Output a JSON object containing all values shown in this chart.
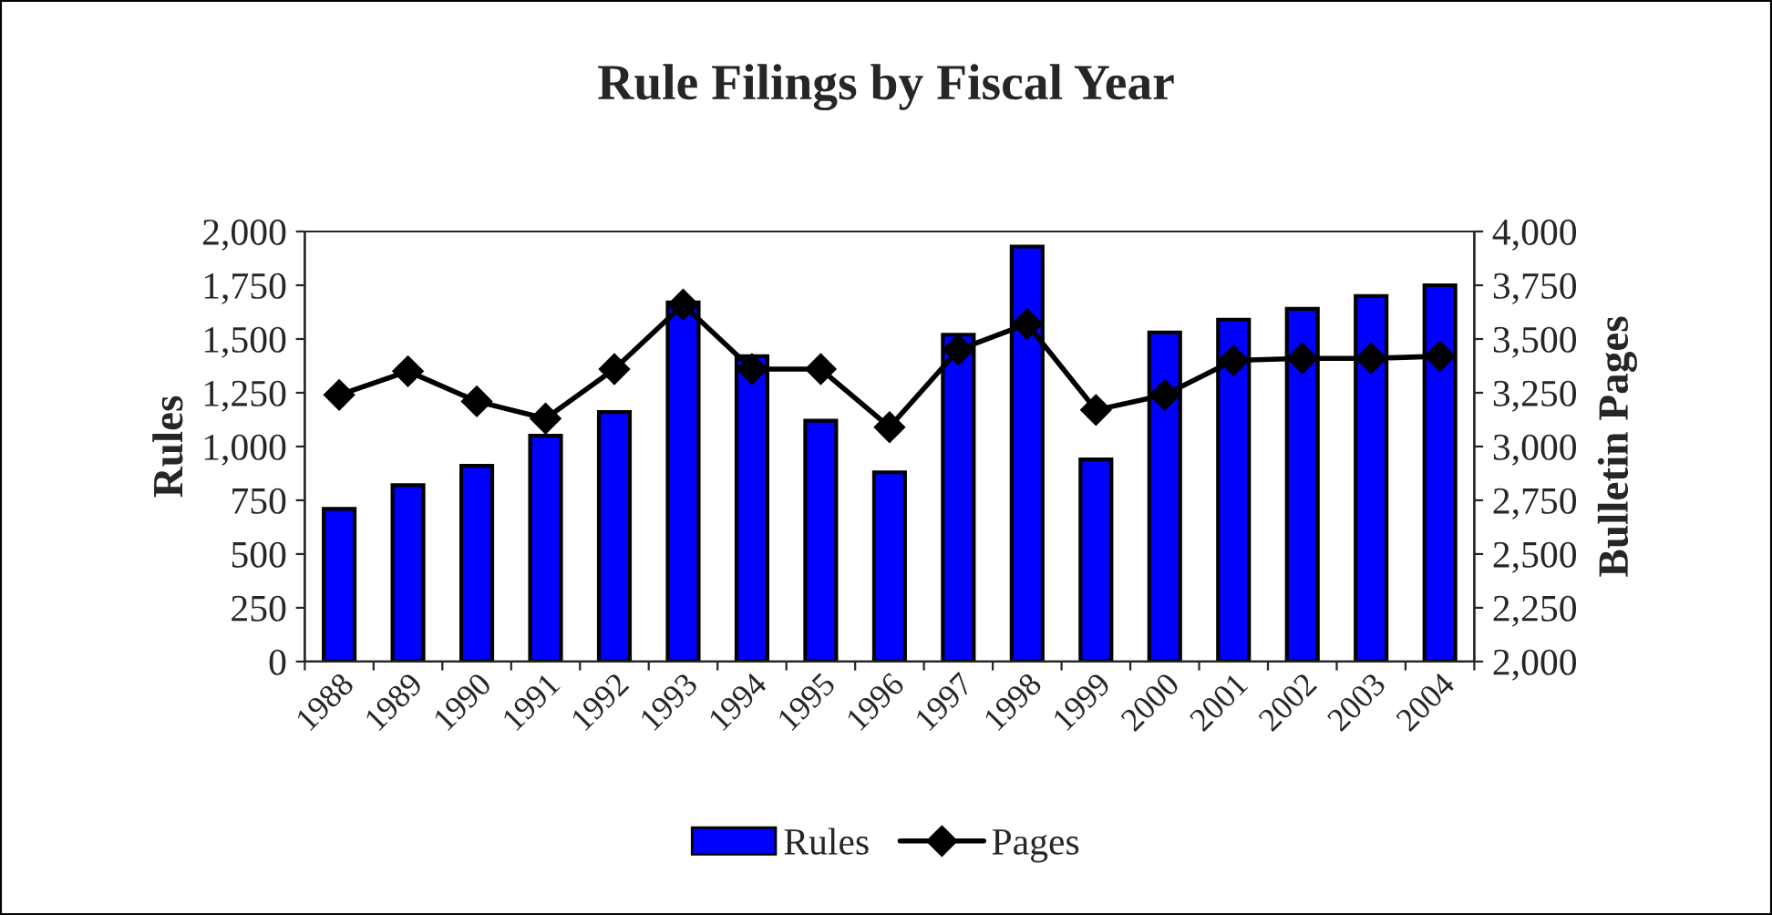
{
  "chart_data": {
    "type": "bar",
    "title": "Rule Filings by Fiscal Year",
    "ylabel": "Rules",
    "y2label": "Bulletin Pages",
    "categories": [
      "1988",
      "1989",
      "1990",
      "1991",
      "1992",
      "1993",
      "1994",
      "1995",
      "1996",
      "1997",
      "1998",
      "1999",
      "2000",
      "2001",
      "2002",
      "2003",
      "2004"
    ],
    "series": [
      {
        "name": "Rules",
        "color": "#0000ff",
        "values": [
          710,
          820,
          910,
          1050,
          1160,
          1670,
          1420,
          1120,
          880,
          1520,
          1930,
          940,
          1530,
          1590,
          1640,
          1700,
          1750
        ]
      },
      {
        "name": "Pages",
        "type": "line",
        "axis": "y2",
        "color": "#000000",
        "values": [
          3240,
          3350,
          3210,
          3130,
          3360,
          3660,
          3360,
          3360,
          3090,
          3450,
          3570,
          3170,
          3240,
          3400,
          3410,
          3410,
          3420
        ]
      }
    ],
    "ylim": [
      0,
      2000
    ],
    "yticks": [
      0,
      {
        "value": 250,
        "label": "250"
      },
      {
        "value": 500,
        "label": "500"
      },
      {
        "value": 750,
        "label": "750"
      },
      {
        "value": 1000,
        "label": "1,000"
      },
      {
        "value": 1250,
        "label": "1,250"
      },
      {
        "value": 1500,
        "label": "1,500"
      },
      {
        "value": 1750,
        "label": "1,750"
      },
      {
        "value": 2000,
        "label": "2,000"
      }
    ],
    "y2lim": [
      2000,
      4000
    ],
    "y2ticks": [
      {
        "value": 2000,
        "label": "2,000"
      },
      {
        "value": 2250,
        "label": "2,250"
      },
      {
        "value": 2500,
        "label": "2,500"
      },
      {
        "value": 2750,
        "label": "2,750"
      },
      {
        "value": 3000,
        "label": "3,000"
      },
      {
        "value": 3250,
        "label": "3,250"
      },
      {
        "value": 3500,
        "label": "3,500"
      },
      {
        "value": 3750,
        "label": "3,750"
      },
      {
        "value": 4000,
        "label": "4,000"
      }
    ],
    "marker": "diamond",
    "line_style": "solid",
    "grid": false,
    "legend": "bottom"
  }
}
